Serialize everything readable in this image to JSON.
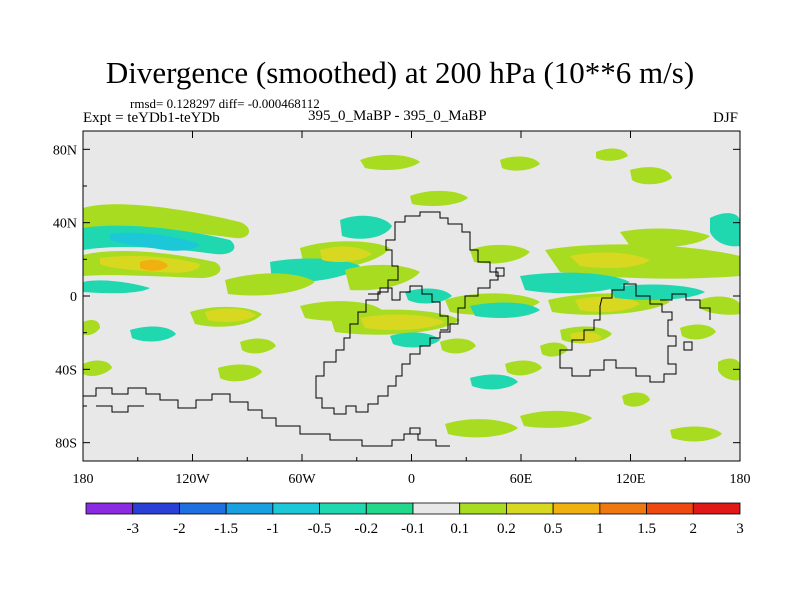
{
  "title": "Divergence (smoothed) at 200 hPa (10**6 m/s)",
  "stats": "rmsd= 0.128297 diff= -0.000468112",
  "expt": "Expt = teYDb1-teYDb",
  "center_label": "395_0_MaBP - 395_0_MaBP",
  "season": "DJF",
  "map": {
    "lat_ticks": [
      {
        "label": "80N",
        "value": 80
      },
      {
        "label": "40N",
        "value": 40
      },
      {
        "label": "0",
        "value": 0
      },
      {
        "label": "40S",
        "value": -40
      },
      {
        "label": "80S",
        "value": -80
      }
    ],
    "lon_ticks": [
      {
        "label": "180",
        "value": -180
      },
      {
        "label": "120W",
        "value": -120
      },
      {
        "label": "60W",
        "value": -60
      },
      {
        "label": "0",
        "value": 0
      },
      {
        "label": "60E",
        "value": 60
      },
      {
        "label": "120E",
        "value": 120
      },
      {
        "label": "180",
        "value": 180
      }
    ],
    "background_color": "#e8e8e8"
  },
  "colorbar": {
    "labels": [
      "-3",
      "-2",
      "-1.5",
      "-1",
      "-0.5",
      "-0.2",
      "-0.1",
      "0.1",
      "0.2",
      "0.5",
      "1",
      "1.5",
      "2",
      "3"
    ],
    "colors": [
      "#8a2be2",
      "#2a3fd6",
      "#1e6fe0",
      "#18a0e0",
      "#1cc8d8",
      "#20d8b0",
      "#22d88a",
      "#e8e8e8",
      "#a8dc20",
      "#d8d820",
      "#f0b010",
      "#f07810",
      "#ee4a10",
      "#e01818"
    ]
  }
}
